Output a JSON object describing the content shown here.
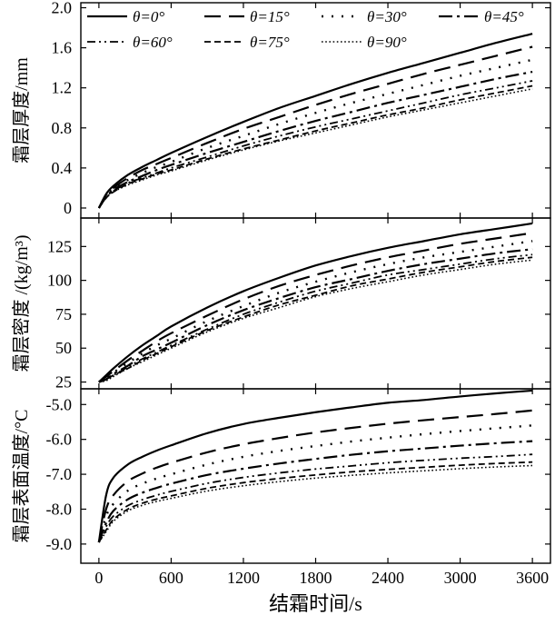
{
  "chart_data": {
    "type": "line",
    "xlabel": "结霜时间/s",
    "x": [
      0,
      60,
      120,
      240,
      360,
      480,
      600,
      900,
      1200,
      1500,
      1800,
      2100,
      2400,
      2700,
      3000,
      3300,
      3600
    ],
    "xticks": [
      0,
      600,
      1200,
      1800,
      2400,
      3000,
      3600
    ],
    "xlim": [
      -150,
      3750
    ],
    "legend": {
      "placement": "top",
      "entries": [
        {
          "label": "θ=0°",
          "dash": "solid"
        },
        {
          "label": "θ=15°",
          "dash": "long-dash"
        },
        {
          "label": "θ=30°",
          "dash": "dot"
        },
        {
          "label": "θ=45°",
          "dash": "dash-dot"
        },
        {
          "label": "θ=60°",
          "dash": "dash-dot-dot"
        },
        {
          "label": "θ=75°",
          "dash": "short-dash"
        },
        {
          "label": "θ=90°",
          "dash": "dense-dot"
        }
      ]
    },
    "panels": [
      {
        "ylabel": "霜层厚度/mm",
        "ylim": [
          -0.1,
          2.05
        ],
        "yticks": [
          0,
          0.4,
          0.8,
          1.2,
          1.6,
          2.0
        ],
        "ytick_labels": [
          "0",
          "0.4",
          "0.8",
          "1.2",
          "1.6",
          "2.0"
        ],
        "series": [
          {
            "name": "θ=0°",
            "values": [
              0,
              0.14,
              0.22,
              0.33,
              0.41,
              0.48,
              0.55,
              0.71,
              0.86,
              1.0,
              1.12,
              1.24,
              1.35,
              1.45,
              1.55,
              1.65,
              1.74
            ]
          },
          {
            "name": "θ=15°",
            "values": [
              0,
              0.13,
              0.2,
              0.3,
              0.38,
              0.44,
              0.5,
              0.65,
              0.79,
              0.91,
              1.03,
              1.14,
              1.24,
              1.34,
              1.43,
              1.52,
              1.61
            ]
          },
          {
            "name": "θ=30°",
            "values": [
              0,
              0.12,
              0.19,
              0.28,
              0.35,
              0.41,
              0.46,
              0.6,
              0.72,
              0.84,
              0.95,
              1.05,
              1.14,
              1.23,
              1.32,
              1.4,
              1.48
            ]
          },
          {
            "name": "θ=45°",
            "values": [
              0,
              0.11,
              0.18,
              0.26,
              0.32,
              0.38,
              0.43,
              0.55,
              0.66,
              0.77,
              0.87,
              0.96,
              1.05,
              1.13,
              1.21,
              1.29,
              1.36
            ]
          },
          {
            "name": "θ=60°",
            "values": [
              0,
              0.11,
              0.17,
              0.25,
              0.3,
              0.35,
              0.4,
              0.51,
              0.62,
              0.72,
              0.81,
              0.89,
              0.97,
              1.05,
              1.13,
              1.2,
              1.27
            ]
          },
          {
            "name": "θ=75°",
            "values": [
              0,
              0.1,
              0.16,
              0.24,
              0.29,
              0.34,
              0.38,
              0.49,
              0.59,
              0.68,
              0.77,
              0.85,
              0.93,
              1.0,
              1.08,
              1.15,
              1.22
            ]
          },
          {
            "name": "θ=90°",
            "values": [
              0,
              0.1,
              0.16,
              0.23,
              0.28,
              0.33,
              0.37,
              0.48,
              0.58,
              0.67,
              0.75,
              0.83,
              0.91,
              0.98,
              1.05,
              1.12,
              1.19
            ]
          }
        ]
      },
      {
        "ylabel": "霜层密度 /(kg/m³)",
        "ylim": [
          20,
          146
        ],
        "yticks": [
          25,
          50,
          75,
          100,
          125
        ],
        "ytick_labels": [
          "25",
          "50",
          "75",
          "100",
          "125"
        ],
        "series": [
          {
            "name": "θ=0°",
            "values": [
              25,
              30,
              35,
              44,
              52,
              59,
              66,
              80,
              92,
              102,
              111,
              118,
              124,
              129,
              134,
              138,
              142
            ]
          },
          {
            "name": "θ=15°",
            "values": [
              25,
              29,
              33,
              41,
              48,
              55,
              61,
              74,
              86,
              96,
              104,
              111,
              117,
              122,
              127,
              131,
              135
            ]
          },
          {
            "name": "θ=30°",
            "values": [
              25,
              28,
              32,
              39,
              46,
              52,
              57,
              70,
              81,
              91,
              99,
              106,
              112,
              117,
              121,
              125,
              129
            ]
          },
          {
            "name": "θ=45°",
            "values": [
              25,
              27,
              31,
              37,
              44,
              49,
              54,
              67,
              78,
              87,
              95,
              101,
              107,
              112,
              116,
              120,
              123
            ]
          },
          {
            "name": "θ=60°",
            "values": [
              25,
              27,
              30,
              36,
              42,
              47,
              52,
              64,
              75,
              84,
              92,
              98,
              104,
              108,
              112,
              116,
              119
            ]
          },
          {
            "name": "θ=75°",
            "values": [
              25,
              27,
              30,
              35,
              41,
              46,
              51,
              63,
              73,
              82,
              89,
              96,
              101,
              106,
              110,
              114,
              117
            ]
          },
          {
            "name": "θ=90°",
            "values": [
              25,
              26,
              29,
              35,
              40,
              45,
              50,
              62,
              72,
              80,
              88,
              94,
              99,
              104,
              108,
              112,
              115
            ]
          }
        ]
      },
      {
        "ylabel": "霜层表面温度/°C",
        "ylim": [
          -9.55,
          -4.55
        ],
        "yticks": [
          -9.0,
          -8.0,
          -7.0,
          -6.0,
          -5.0
        ],
        "ytick_labels": [
          "-9.0",
          "-8.0",
          "-7.0",
          "-6.0",
          "-5.0"
        ],
        "series": [
          {
            "name": "θ=0°",
            "values": [
              -8.95,
              -7.6,
              -7.1,
              -6.72,
              -6.5,
              -6.32,
              -6.17,
              -5.82,
              -5.56,
              -5.38,
              -5.22,
              -5.08,
              -4.95,
              -4.87,
              -4.77,
              -4.68,
              -4.6
            ]
          },
          {
            "name": "θ=15°",
            "values": [
              -8.95,
              -8.0,
              -7.6,
              -7.2,
              -6.98,
              -6.81,
              -6.67,
              -6.37,
              -6.14,
              -5.96,
              -5.8,
              -5.67,
              -5.55,
              -5.45,
              -5.36,
              -5.27,
              -5.17
            ]
          },
          {
            "name": "θ=30°",
            "values": [
              -8.95,
              -8.2,
              -7.85,
              -7.47,
              -7.27,
              -7.12,
              -7.0,
              -6.72,
              -6.5,
              -6.33,
              -6.19,
              -6.06,
              -5.95,
              -5.85,
              -5.76,
              -5.68,
              -5.6
            ]
          },
          {
            "name": "θ=45°",
            "values": [
              -8.95,
              -8.4,
              -8.05,
              -7.72,
              -7.53,
              -7.39,
              -7.27,
              -7.02,
              -6.84,
              -6.69,
              -6.56,
              -6.44,
              -6.34,
              -6.26,
              -6.18,
              -6.11,
              -6.05
            ]
          },
          {
            "name": "θ=60°",
            "values": [
              -8.95,
              -8.5,
              -8.2,
              -7.9,
              -7.73,
              -7.6,
              -7.49,
              -7.26,
              -7.09,
              -6.96,
              -6.85,
              -6.76,
              -6.67,
              -6.6,
              -6.54,
              -6.49,
              -6.43
            ]
          },
          {
            "name": "θ=75°",
            "values": [
              -8.95,
              -8.6,
              -8.3,
              -8.0,
              -7.83,
              -7.71,
              -7.62,
              -7.4,
              -7.24,
              -7.12,
              -7.02,
              -6.93,
              -6.86,
              -6.8,
              -6.74,
              -6.69,
              -6.65
            ]
          },
          {
            "name": "θ=90°",
            "values": [
              -8.95,
              -8.65,
              -8.35,
              -8.05,
              -7.89,
              -7.78,
              -7.69,
              -7.48,
              -7.33,
              -7.21,
              -7.11,
              -7.03,
              -6.96,
              -6.9,
              -6.84,
              -6.79,
              -6.75
            ]
          }
        ]
      }
    ]
  }
}
